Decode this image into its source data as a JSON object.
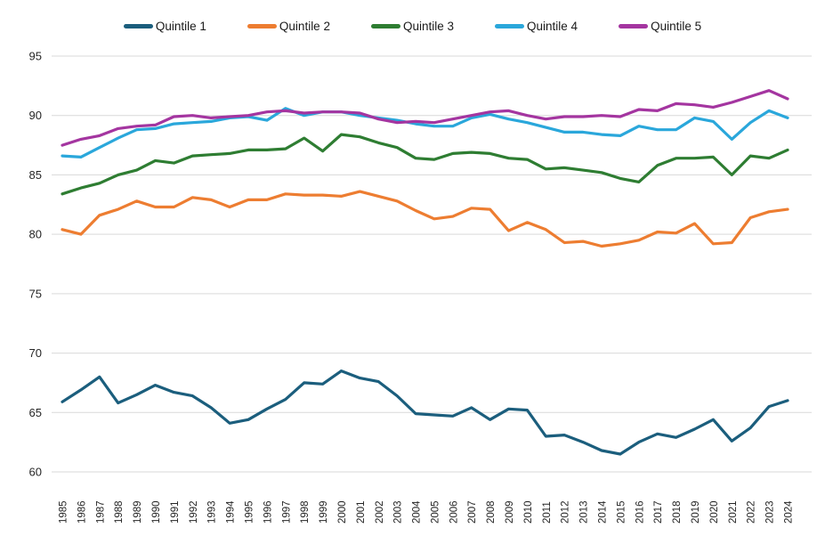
{
  "chart_data": {
    "type": "line",
    "title": "",
    "xlabel": "",
    "ylabel": "",
    "x": [
      1985,
      1986,
      1987,
      1988,
      1989,
      1990,
      1991,
      1992,
      1993,
      1994,
      1995,
      1996,
      1997,
      1998,
      1999,
      2000,
      2001,
      2002,
      2003,
      2004,
      2005,
      2006,
      2007,
      2008,
      2009,
      2010,
      2011,
      2012,
      2013,
      2014,
      2015,
      2016,
      2017,
      2018,
      2019,
      2020,
      2021,
      2022,
      2023,
      2024
    ],
    "ylim": [
      60,
      95
    ],
    "ytick_step": 5,
    "grid": "horizontal-only",
    "legend_position": "top-center",
    "background_color": "#ffffff",
    "gridline_color": "#d9d9d9",
    "axis_text_color": "#262626",
    "series": [
      {
        "name": "Quintile 1",
        "color": "#1B5E7D",
        "values": [
          65.9,
          66.9,
          68.0,
          65.8,
          66.5,
          67.3,
          66.7,
          66.4,
          65.4,
          64.1,
          64.4,
          65.3,
          66.1,
          67.5,
          67.4,
          68.5,
          67.9,
          67.6,
          66.4,
          64.9,
          64.8,
          64.7,
          65.4,
          64.4,
          65.3,
          65.2,
          63.0,
          63.1,
          62.5,
          61.8,
          61.5,
          62.5,
          63.2,
          62.9,
          63.6,
          64.4,
          62.6,
          63.7,
          65.5,
          66.0
        ]
      },
      {
        "name": "Quintile 2",
        "color": "#ED7D31",
        "values": [
          80.4,
          80.0,
          81.6,
          82.1,
          82.8,
          82.3,
          82.3,
          83.1,
          82.9,
          82.3,
          82.9,
          82.9,
          83.4,
          83.3,
          83.3,
          83.2,
          83.6,
          83.2,
          82.8,
          82.0,
          81.3,
          81.5,
          82.2,
          82.1,
          80.3,
          81.0,
          80.4,
          79.3,
          79.4,
          79.0,
          79.2,
          79.5,
          80.2,
          80.1,
          80.9,
          79.2,
          79.3,
          81.4,
          81.9,
          82.1
        ]
      },
      {
        "name": "Quintile 3",
        "color": "#2E7D32",
        "values": [
          83.4,
          83.9,
          84.3,
          85.0,
          85.4,
          86.2,
          86.0,
          86.6,
          86.7,
          86.8,
          87.1,
          87.1,
          87.2,
          88.1,
          87.0,
          88.4,
          88.2,
          87.7,
          87.3,
          86.4,
          86.3,
          86.8,
          86.9,
          86.8,
          86.4,
          86.3,
          85.5,
          85.6,
          85.4,
          85.2,
          84.7,
          84.4,
          85.8,
          86.4,
          86.4,
          86.5,
          85.0,
          86.6,
          86.4,
          87.1
        ]
      },
      {
        "name": "Quintile 4",
        "color": "#2AA7DB",
        "values": [
          86.6,
          86.5,
          87.3,
          88.1,
          88.8,
          88.9,
          89.3,
          89.4,
          89.5,
          89.8,
          89.9,
          89.6,
          90.6,
          90.0,
          90.3,
          90.3,
          90.0,
          89.8,
          89.6,
          89.3,
          89.1,
          89.1,
          89.8,
          90.1,
          89.7,
          89.4,
          89.0,
          88.6,
          88.6,
          88.4,
          88.3,
          89.1,
          88.8,
          88.8,
          89.8,
          89.5,
          88.0,
          89.4,
          90.4,
          89.8
        ]
      },
      {
        "name": "Quintile 5",
        "color": "#A435A0",
        "values": [
          87.5,
          88.0,
          88.3,
          88.9,
          89.1,
          89.2,
          89.9,
          90.0,
          89.8,
          89.9,
          90.0,
          90.3,
          90.4,
          90.2,
          90.3,
          90.3,
          90.2,
          89.7,
          89.4,
          89.5,
          89.4,
          89.7,
          90.0,
          90.3,
          90.4,
          90.0,
          89.7,
          89.9,
          89.9,
          90.0,
          89.9,
          90.5,
          90.4,
          91.0,
          90.9,
          90.7,
          91.1,
          91.6,
          92.1,
          91.4
        ]
      }
    ]
  }
}
